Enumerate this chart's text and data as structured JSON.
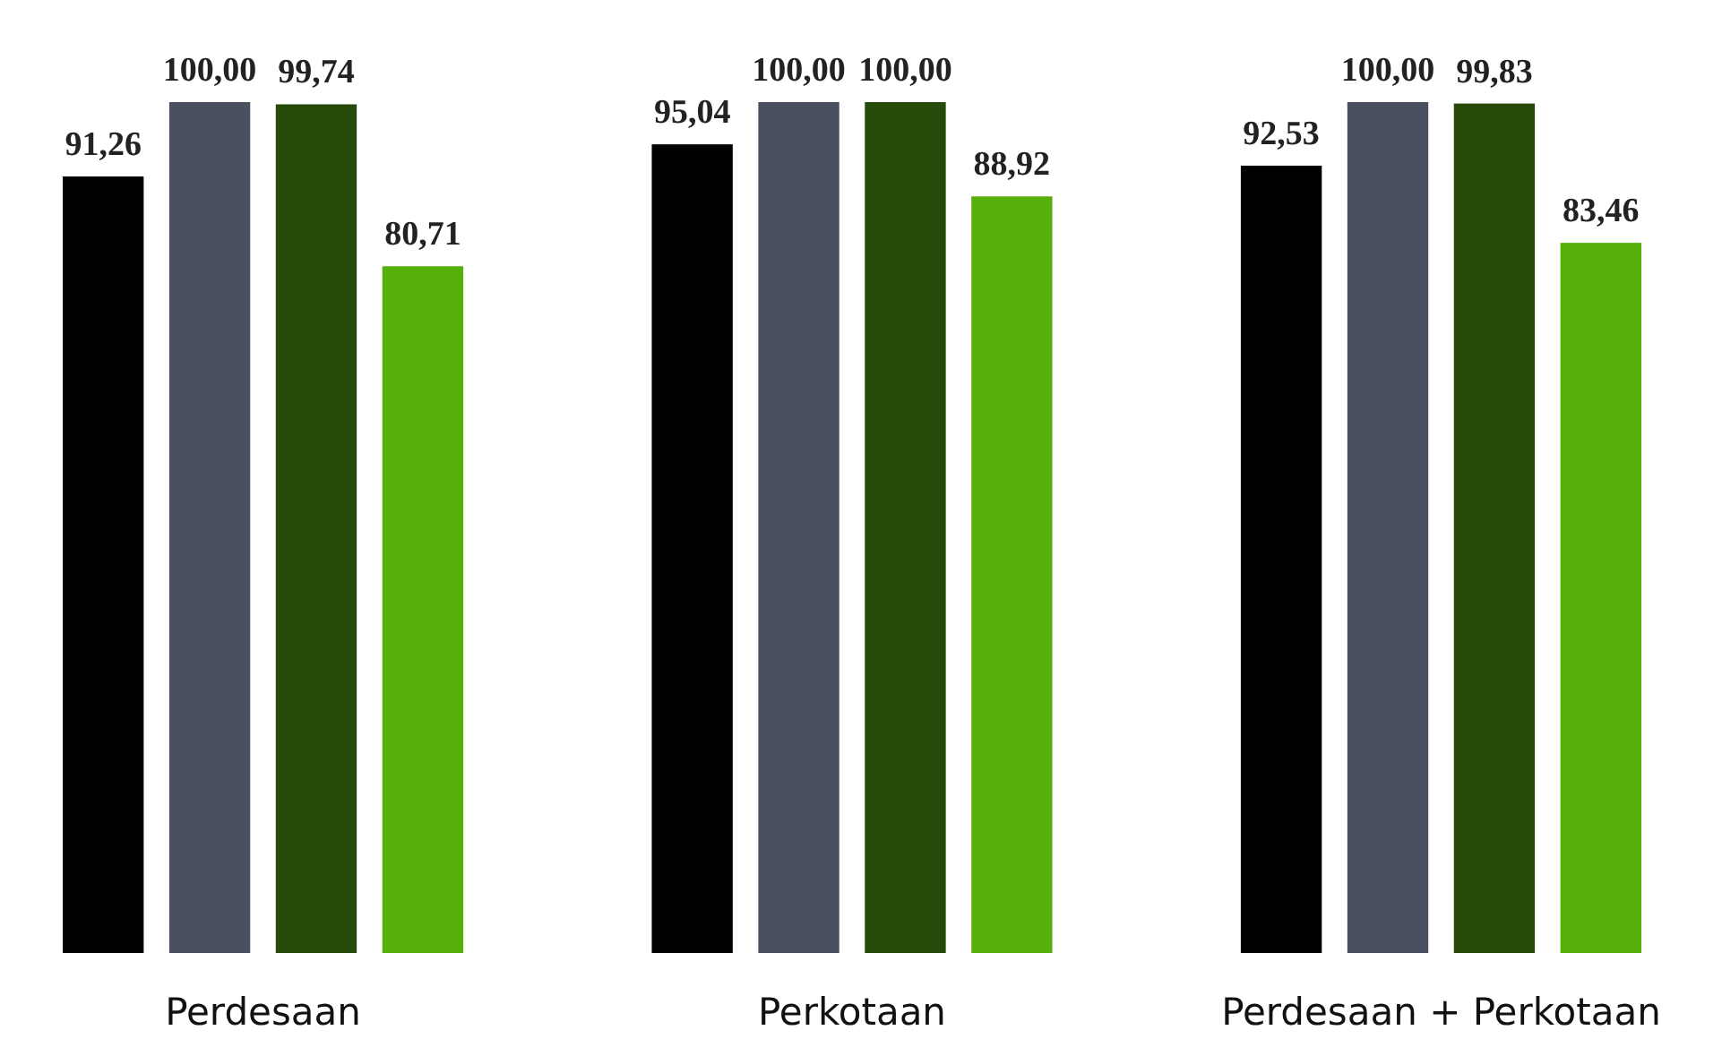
{
  "chart_data": {
    "type": "bar",
    "categories": [
      "Perdesaan",
      "Perkotaan",
      "Perdesaan + Perkotaan"
    ],
    "series": [
      {
        "color": "#000000",
        "values": [
          91.26,
          95.04,
          92.53
        ],
        "value_labels": [
          "91,26",
          "95,04",
          "92,53"
        ]
      },
      {
        "color": "#4a5060",
        "values": [
          100.0,
          100.0,
          100.0
        ],
        "value_labels": [
          "100,00",
          "100,00",
          "100,00"
        ]
      },
      {
        "color": "#254a0a",
        "values": [
          99.74,
          100.0,
          99.83
        ],
        "value_labels": [
          "99,74",
          "100,00",
          "99,83"
        ]
      },
      {
        "color": "#55b00a",
        "values": [
          80.71,
          88.92,
          83.46
        ],
        "value_labels": [
          "80,71",
          "88,92",
          "83,46"
        ]
      }
    ]
  }
}
